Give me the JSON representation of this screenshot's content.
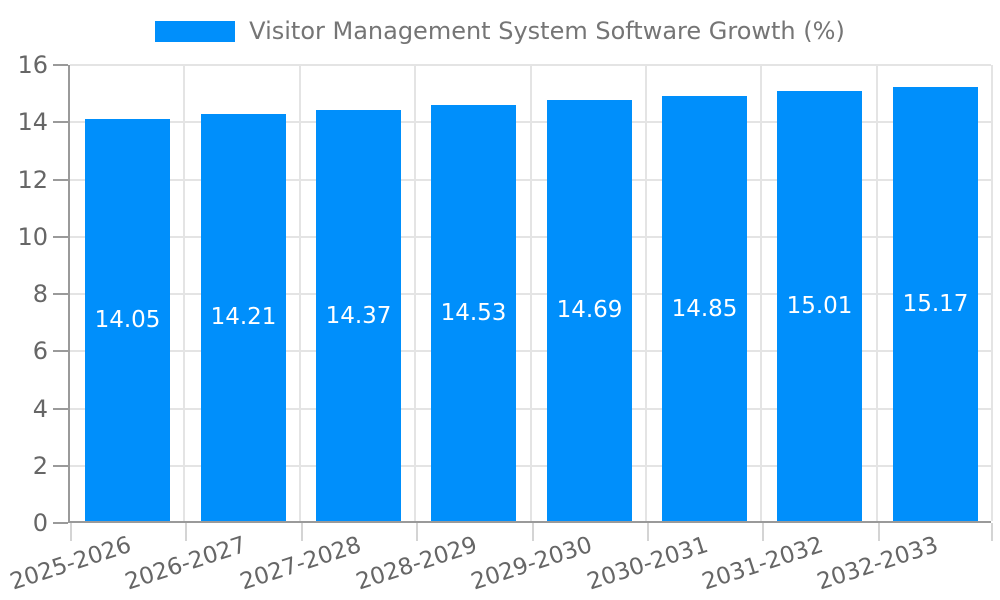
{
  "legend": {
    "label": "Visitor Management System Software Growth (%)",
    "swatch_color": "#008FFB"
  },
  "chart_data": {
    "type": "bar",
    "title": "Visitor Management System Software Growth (%)",
    "categories": [
      "2025-2026",
      "2026-2027",
      "2027-2028",
      "2028-2029",
      "2029-2030",
      "2030-2031",
      "2031-2032",
      "2032-2033"
    ],
    "values": [
      14.05,
      14.21,
      14.37,
      14.53,
      14.69,
      14.85,
      15.01,
      15.17
    ],
    "value_labels": [
      "14.05",
      "14.21",
      "14.37",
      "14.53",
      "14.69",
      "14.85",
      "15.01",
      "15.17"
    ],
    "xlabel": "",
    "ylabel": "",
    "ylim": [
      0,
      16
    ],
    "ytick_step": 2,
    "y_tick_labels": [
      "0",
      "2",
      "4",
      "6",
      "8",
      "10",
      "12",
      "14",
      "16"
    ],
    "grid": true,
    "legend_position": "top",
    "bar_color": "#008FFB",
    "value_label_color": "#ffffff",
    "axis_color": "#9a9a9a",
    "grid_color": "#e4e4e4",
    "tick_label_color": "#666666"
  }
}
